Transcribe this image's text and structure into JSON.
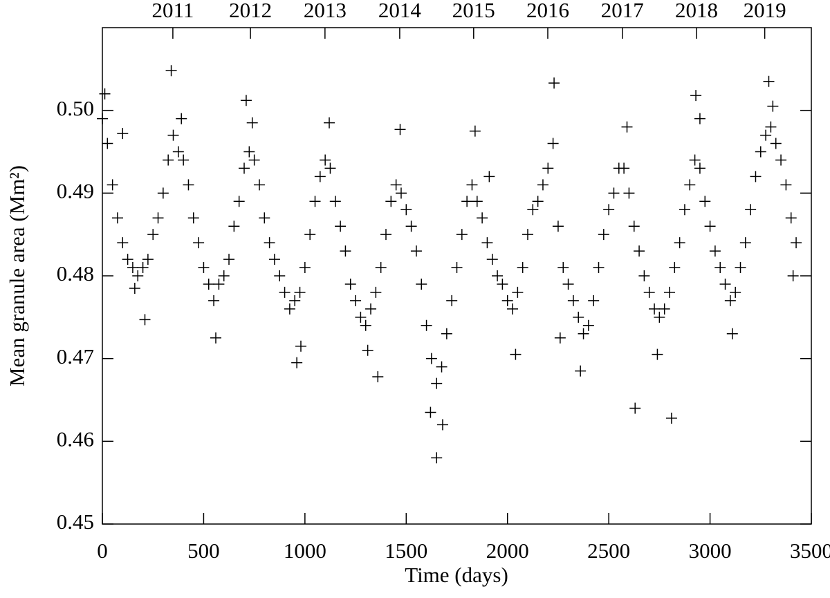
{
  "chart_data": {
    "type": "scatter",
    "xlabel": "Time (days)",
    "ylabel": "Mean granule area (Mm²)",
    "marker": "+",
    "color": "#000000",
    "xlim": [
      0,
      3500
    ],
    "xticks": [
      0,
      500,
      1000,
      1500,
      2000,
      2500,
      3000,
      3500
    ],
    "ylim": [
      0.45,
      0.51
    ],
    "yticks": [
      0.45,
      0.46,
      0.47,
      0.48,
      0.49,
      {
        "value": 0.5,
        "label": "0.50"
      }
    ],
    "x2ticks": [
      {
        "value": 348,
        "label": "2011"
      },
      {
        "value": 731,
        "label": "2012"
      },
      {
        "value": 1099,
        "label": "2013"
      },
      {
        "value": 1468,
        "label": "2014"
      },
      {
        "value": 1833,
        "label": "2015"
      },
      {
        "value": 2199,
        "label": "2016"
      },
      {
        "value": 2567,
        "label": "2017"
      },
      {
        "value": 2933,
        "label": "2018"
      },
      {
        "value": 3270,
        "label": "2019"
      }
    ],
    "x": [
      0,
      25,
      50,
      75,
      100,
      125,
      150,
      175,
      200,
      225,
      250,
      275,
      300,
      325,
      350,
      375,
      400,
      425,
      450,
      475,
      500,
      525,
      550,
      575,
      600,
      625,
      650,
      675,
      700,
      725,
      750,
      775,
      800,
      825,
      850,
      875,
      900,
      925,
      950,
      975,
      1000,
      1025,
      1050,
      1075,
      1100,
      1125,
      1150,
      1175,
      1200,
      1225,
      1250,
      1275,
      1300,
      1325,
      1350,
      1375,
      1400,
      1425,
      1450,
      1475,
      1500,
      1525,
      1550,
      1575,
      1600,
      1625,
      1650,
      1675,
      1700,
      1725,
      1750,
      1775,
      1800,
      1825,
      1850,
      1875,
      1900,
      1925,
      1950,
      1975,
      2000,
      2025,
      2050,
      2075,
      2100,
      2125,
      2150,
      2175,
      2200,
      2225,
      2250,
      2275,
      2300,
      2325,
      2350,
      2375,
      2400,
      2425,
      2450,
      2475,
      2500,
      2525,
      2550,
      2575,
      2600,
      2625,
      2650,
      2675,
      2700,
      2725,
      2750,
      2775,
      2800,
      2825,
      2850,
      2875,
      2900,
      2925,
      2950,
      2975,
      3000,
      3025,
      3050,
      3075,
      3100,
      3125,
      3150,
      3175,
      3200,
      3225,
      3250,
      3275,
      3300,
      3325,
      3350,
      3375,
      3400,
      3425,
      340,
      710,
      2230,
      2930,
      3290,
      1650,
      2630,
      2810,
      210,
      100,
      1470,
      12,
      160,
      390,
      560,
      740,
      960,
      980,
      1120,
      1310,
      1360,
      1620,
      1680,
      1840,
      1910,
      2040,
      2260,
      2360,
      2590,
      2740,
      2950,
      3110,
      3310,
      3410
    ],
    "y": [
      0.499,
      0.496,
      0.491,
      0.487,
      0.484,
      0.482,
      0.481,
      0.48,
      0.481,
      0.482,
      0.485,
      0.487,
      0.49,
      0.494,
      0.497,
      0.495,
      0.494,
      0.491,
      0.487,
      0.484,
      0.481,
      0.479,
      0.477,
      0.479,
      0.48,
      0.482,
      0.486,
      0.489,
      0.493,
      0.495,
      0.494,
      0.491,
      0.487,
      0.484,
      0.482,
      0.48,
      0.478,
      0.476,
      0.477,
      0.478,
      0.481,
      0.485,
      0.489,
      0.492,
      0.494,
      0.493,
      0.489,
      0.486,
      0.483,
      0.479,
      0.477,
      0.475,
      0.474,
      0.476,
      0.478,
      0.481,
      0.485,
      0.489,
      0.491,
      0.49,
      0.488,
      0.486,
      0.483,
      0.479,
      0.474,
      0.47,
      0.467,
      0.469,
      0.473,
      0.477,
      0.481,
      0.485,
      0.489,
      0.491,
      0.489,
      0.487,
      0.484,
      0.482,
      0.48,
      0.479,
      0.477,
      0.476,
      0.478,
      0.481,
      0.485,
      0.488,
      0.489,
      0.491,
      0.493,
      0.496,
      0.486,
      0.481,
      0.479,
      0.477,
      0.475,
      0.473,
      0.474,
      0.477,
      0.481,
      0.485,
      0.488,
      0.49,
      0.493,
      0.493,
      0.49,
      0.486,
      0.483,
      0.48,
      0.478,
      0.476,
      0.475,
      0.476,
      0.478,
      0.481,
      0.484,
      0.488,
      0.491,
      0.494,
      0.493,
      0.489,
      0.486,
      0.483,
      0.481,
      0.479,
      0.477,
      0.478,
      0.481,
      0.484,
      0.488,
      0.492,
      0.495,
      0.497,
      0.498,
      0.496,
      0.494,
      0.491,
      0.487,
      0.484,
      0.5048,
      0.5012,
      0.5033,
      0.5018,
      0.5035,
      0.458,
      0.464,
      0.4628,
      0.4747,
      0.4972,
      0.4977,
      0.502,
      0.4785,
      0.499,
      0.4725,
      0.4985,
      0.4695,
      0.4715,
      0.4985,
      0.471,
      0.4678,
      0.4635,
      0.462,
      0.4975,
      0.492,
      0.4705,
      0.4725,
      0.4685,
      0.498,
      0.4705,
      0.499,
      0.473,
      0.5005,
      0.48
    ]
  }
}
